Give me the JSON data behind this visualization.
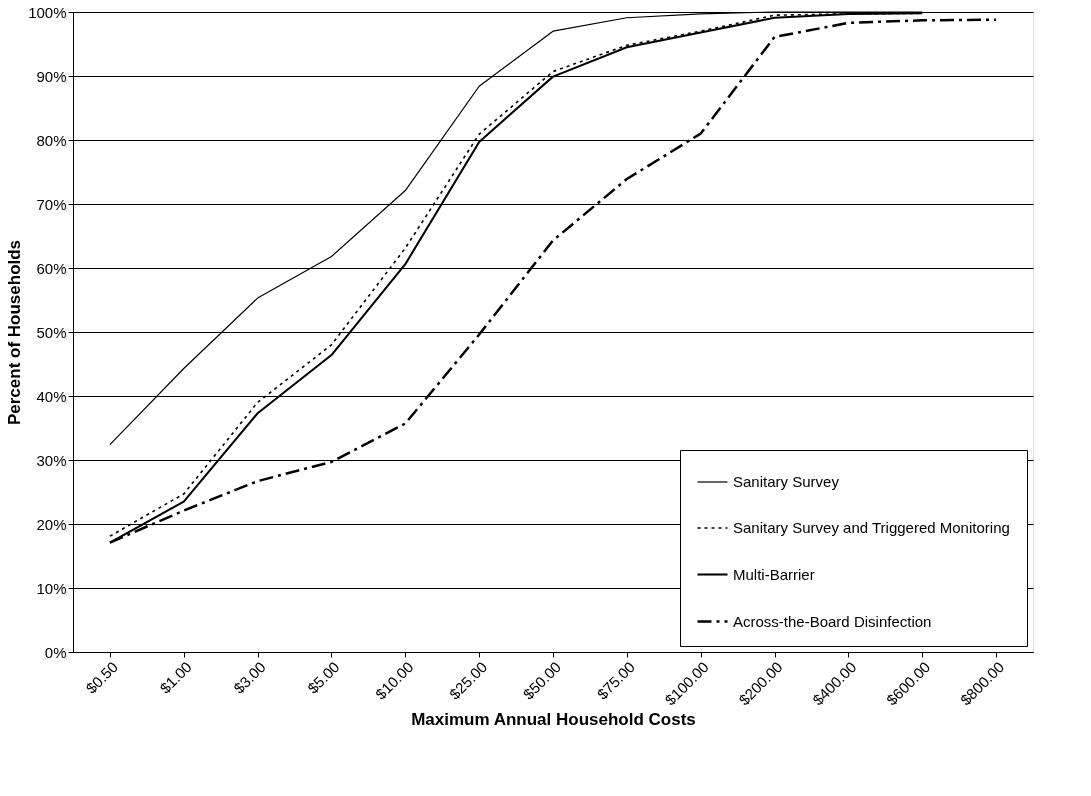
{
  "chart_data": {
    "type": "line",
    "xlabel": "Maximum Annual Household Costs",
    "ylabel": "Percent of Households",
    "categories": [
      "$0.50",
      "$1.00",
      "$3.00",
      "$5.00",
      "$10.00",
      "$25.00",
      "$50.00",
      "$75.00",
      "$100.00",
      "$200.00",
      "$400.00",
      "$600.00",
      "$800.00"
    ],
    "series": [
      {
        "name": "Sanitary Survey",
        "color": "#000000",
        "line_style": "solid",
        "values": [
          32.4,
          44.3,
          55.3,
          61.8,
          72.1,
          88.4,
          97,
          99.1,
          99.7,
          100,
          100,
          100,
          null
        ]
      },
      {
        "name": "Sanitary Survey and Triggered Monitoring",
        "color": "#000000",
        "line_style": "dotted",
        "values": [
          18.1,
          24.7,
          39.0,
          48.0,
          63.1,
          80.9,
          90.7,
          94.8,
          97.0,
          99.5,
          99.7,
          99.8,
          null
        ]
      },
      {
        "name": "Multi-Barrier",
        "color": "#000000",
        "line_style": "solid",
        "values": [
          17.1,
          23.5,
          37.3,
          46.4,
          60.6,
          79.7,
          89.9,
          94.5,
          96.8,
          99.1,
          99.7,
          99.8,
          null
        ]
      },
      {
        "name": "Across-the-Board Disinfection",
        "color": "#000000",
        "line_style": "dashed",
        "values": [
          17.1,
          22.1,
          26.7,
          29.7,
          35.7,
          49.6,
          64.3,
          73.9,
          81.0,
          96.1,
          98.3,
          98.7,
          98.8
        ]
      }
    ],
    "ylim": [
      0,
      100
    ],
    "yticks": [
      {
        "value": 0,
        "label": "0%"
      },
      {
        "value": 10,
        "label": "10%"
      },
      {
        "value": 20,
        "label": "20%"
      },
      {
        "value": 30,
        "label": "30%"
      },
      {
        "value": 40,
        "label": "40%"
      },
      {
        "value": 50,
        "label": "50%"
      },
      {
        "value": 60,
        "label": "60%"
      },
      {
        "value": 70,
        "label": "70%"
      },
      {
        "value": 80,
        "label": "80%"
      },
      {
        "value": 90,
        "label": "90%"
      },
      {
        "value": 100,
        "label": "100%"
      }
    ],
    "grid": "y",
    "legend": "bottom right",
    "marker": "none"
  }
}
